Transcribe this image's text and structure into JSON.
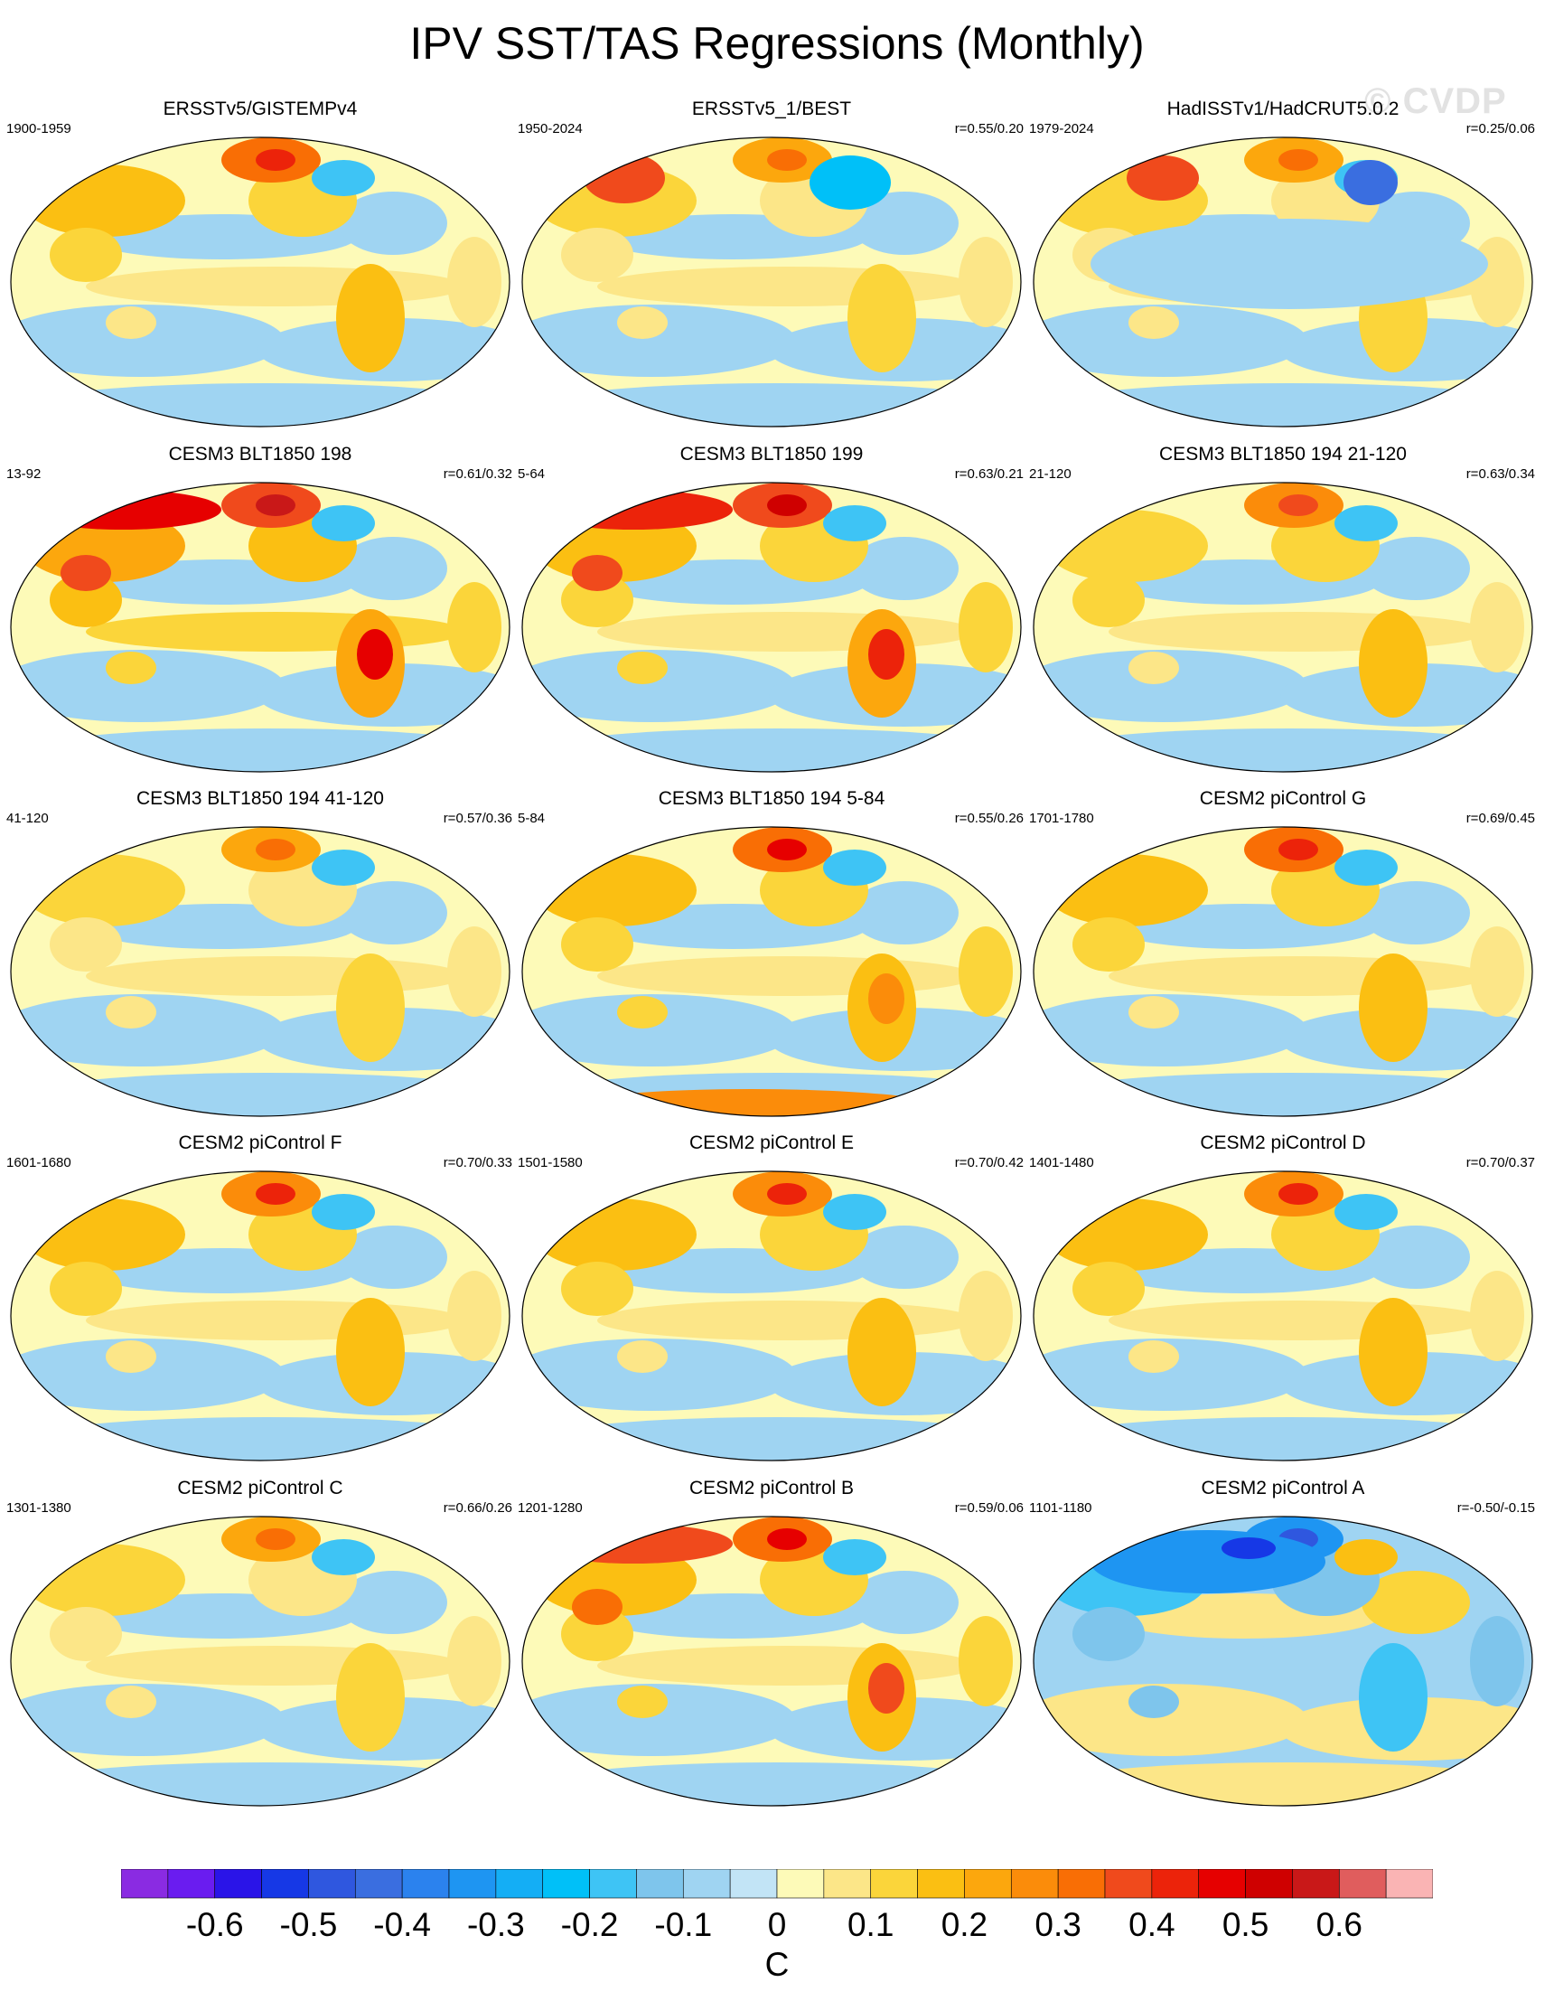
{
  "title": "IPV SST/TAS Regressions (Monthly)",
  "watermark": "© CVDP",
  "chart_data": {
    "type": "heatmap",
    "projection": "global map (Pacific-centered)",
    "panels": [
      {
        "title": "ERSSTv5/GISTEMPv4",
        "period": "1900-1959",
        "corr": "",
        "pattern": "ipv_pos",
        "strength": 0.8
      },
      {
        "title": "ERSSTv5_1/BEST",
        "period": "1950-2024",
        "corr": "r=0.55/0.20",
        "pattern": "ipv_mixed",
        "strength": 0.6
      },
      {
        "title": "HadISSTv1/HadCRUT5.0.2",
        "period": "1979-2024",
        "corr": "r=0.25/0.06",
        "pattern": "ipv_cool",
        "strength": 0.6
      },
      {
        "title": "CESM3 BLT1850 198",
        "period": "13-92",
        "corr": "r=0.61/0.32",
        "pattern": "ipv_strong",
        "strength": 1.0
      },
      {
        "title": "CESM3 BLT1850 199",
        "period": "5-64",
        "corr": "r=0.63/0.21",
        "pattern": "ipv_strong",
        "strength": 0.95
      },
      {
        "title": "CESM3 BLT1850 194 21-120",
        "period": "21-120",
        "corr": "r=0.63/0.34",
        "pattern": "ipv_pos",
        "strength": 0.7
      },
      {
        "title": "CESM3 BLT1850 194 41-120",
        "period": "41-120",
        "corr": "r=0.57/0.36",
        "pattern": "ipv_pos",
        "strength": 0.6
      },
      {
        "title": "CESM3 BLT1850 194 5-84",
        "period": "5-84",
        "corr": "r=0.55/0.26",
        "pattern": "ipv_warm_south",
        "strength": 0.85
      },
      {
        "title": "CESM2 piControl G",
        "period": "1701-1780",
        "corr": "r=0.69/0.45",
        "pattern": "ipv_pos",
        "strength": 0.8
      },
      {
        "title": "CESM2 piControl F",
        "period": "1601-1680",
        "corr": "r=0.70/0.33",
        "pattern": "ipv_pos",
        "strength": 0.75
      },
      {
        "title": "CESM2 piControl E",
        "period": "1501-1580",
        "corr": "r=0.70/0.42",
        "pattern": "ipv_pos",
        "strength": 0.75
      },
      {
        "title": "CESM2 piControl D",
        "period": "1401-1480",
        "corr": "r=0.70/0.37",
        "pattern": "ipv_pos",
        "strength": 0.75
      },
      {
        "title": "CESM2 piControl C",
        "period": "1301-1380",
        "corr": "r=0.66/0.26",
        "pattern": "ipv_pos",
        "strength": 0.55
      },
      {
        "title": "CESM2 piControl B",
        "period": "1201-1280",
        "corr": "r=0.59/0.06",
        "pattern": "ipv_strong",
        "strength": 0.85
      },
      {
        "title": "CESM2 piControl A",
        "period": "1101-1180",
        "corr": "r=-0.50/-0.15",
        "pattern": "ipv_neg",
        "strength": 0.9
      }
    ],
    "colorbar": {
      "unit": "C",
      "levels": [
        -0.65,
        -0.6,
        -0.55,
        -0.5,
        -0.45,
        -0.4,
        -0.35,
        -0.3,
        -0.25,
        -0.2,
        -0.15,
        -0.1,
        -0.05,
        0,
        0.05,
        0.1,
        0.15,
        0.2,
        0.25,
        0.3,
        0.35,
        0.4,
        0.45,
        0.5,
        0.55,
        0.6,
        0.65
      ],
      "colors": [
        "#8a2be2",
        "#6a1cf0",
        "#2a14e8",
        "#1638e6",
        "#2f57df",
        "#3a6ee0",
        "#2b82ee",
        "#1e95f2",
        "#14aef5",
        "#00c0f8",
        "#3ec4f5",
        "#7ec5ec",
        "#9fd4f2",
        "#c2e4f6",
        "#fdfab8",
        "#fce688",
        "#fbd53a",
        "#fbbf12",
        "#fca70d",
        "#fb8c0a",
        "#f96e05",
        "#f04a1c",
        "#ec230a",
        "#e60000",
        "#cf0000",
        "#c91818",
        "#e05d5d",
        "#fab4b4"
      ],
      "tick_labels": [
        "-0.6",
        "-0.5",
        "-0.4",
        "-0.3",
        "-0.2",
        "-0.1",
        "0",
        "0.1",
        "0.2",
        "0.3",
        "0.4",
        "0.5",
        "0.6"
      ],
      "tick_values": [
        -0.6,
        -0.5,
        -0.4,
        -0.3,
        -0.2,
        -0.1,
        0,
        0.1,
        0.2,
        0.3,
        0.4,
        0.5,
        0.6
      ]
    }
  }
}
